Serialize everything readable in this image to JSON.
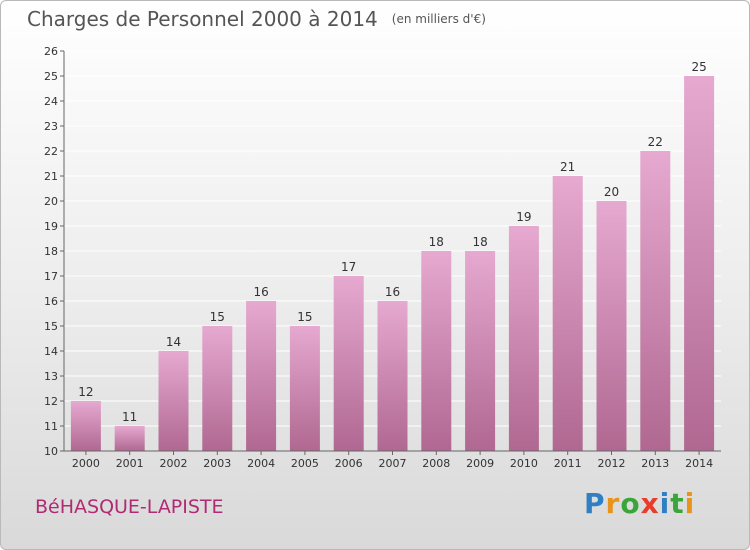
{
  "title": "Charges de Personnel 2000 à 2014",
  "unit_note": "(en milliers d'€)",
  "commune": "BéHASQUE-LAPISTE",
  "brand": {
    "text": "Proxiti",
    "letter_colors": [
      "#2f7fc4",
      "#e8941c",
      "#3aa63a",
      "#e83c2c",
      "#2f7fc4",
      "#3aa63a",
      "#e8941c"
    ]
  },
  "chart_data": {
    "type": "bar",
    "title": "Charges de Personnel 2000 à 2014",
    "subtitle": "(en milliers d'€)",
    "categories": [
      "2000",
      "2001",
      "2002",
      "2003",
      "2004",
      "2005",
      "2006",
      "2007",
      "2008",
      "2009",
      "2010",
      "2011",
      "2012",
      "2013",
      "2014"
    ],
    "values": [
      12,
      11,
      14,
      15,
      16,
      15,
      17,
      16,
      18,
      18,
      19,
      21,
      20,
      22,
      25
    ],
    "ylim": [
      10,
      26
    ],
    "yticks": [
      10,
      11,
      12,
      13,
      14,
      15,
      16,
      17,
      18,
      19,
      20,
      21,
      22,
      23,
      24,
      25,
      26
    ],
    "grid": true,
    "bar_color_top": "#e6a9d0",
    "bar_color_bottom": "#b06891",
    "data_labels": true
  }
}
